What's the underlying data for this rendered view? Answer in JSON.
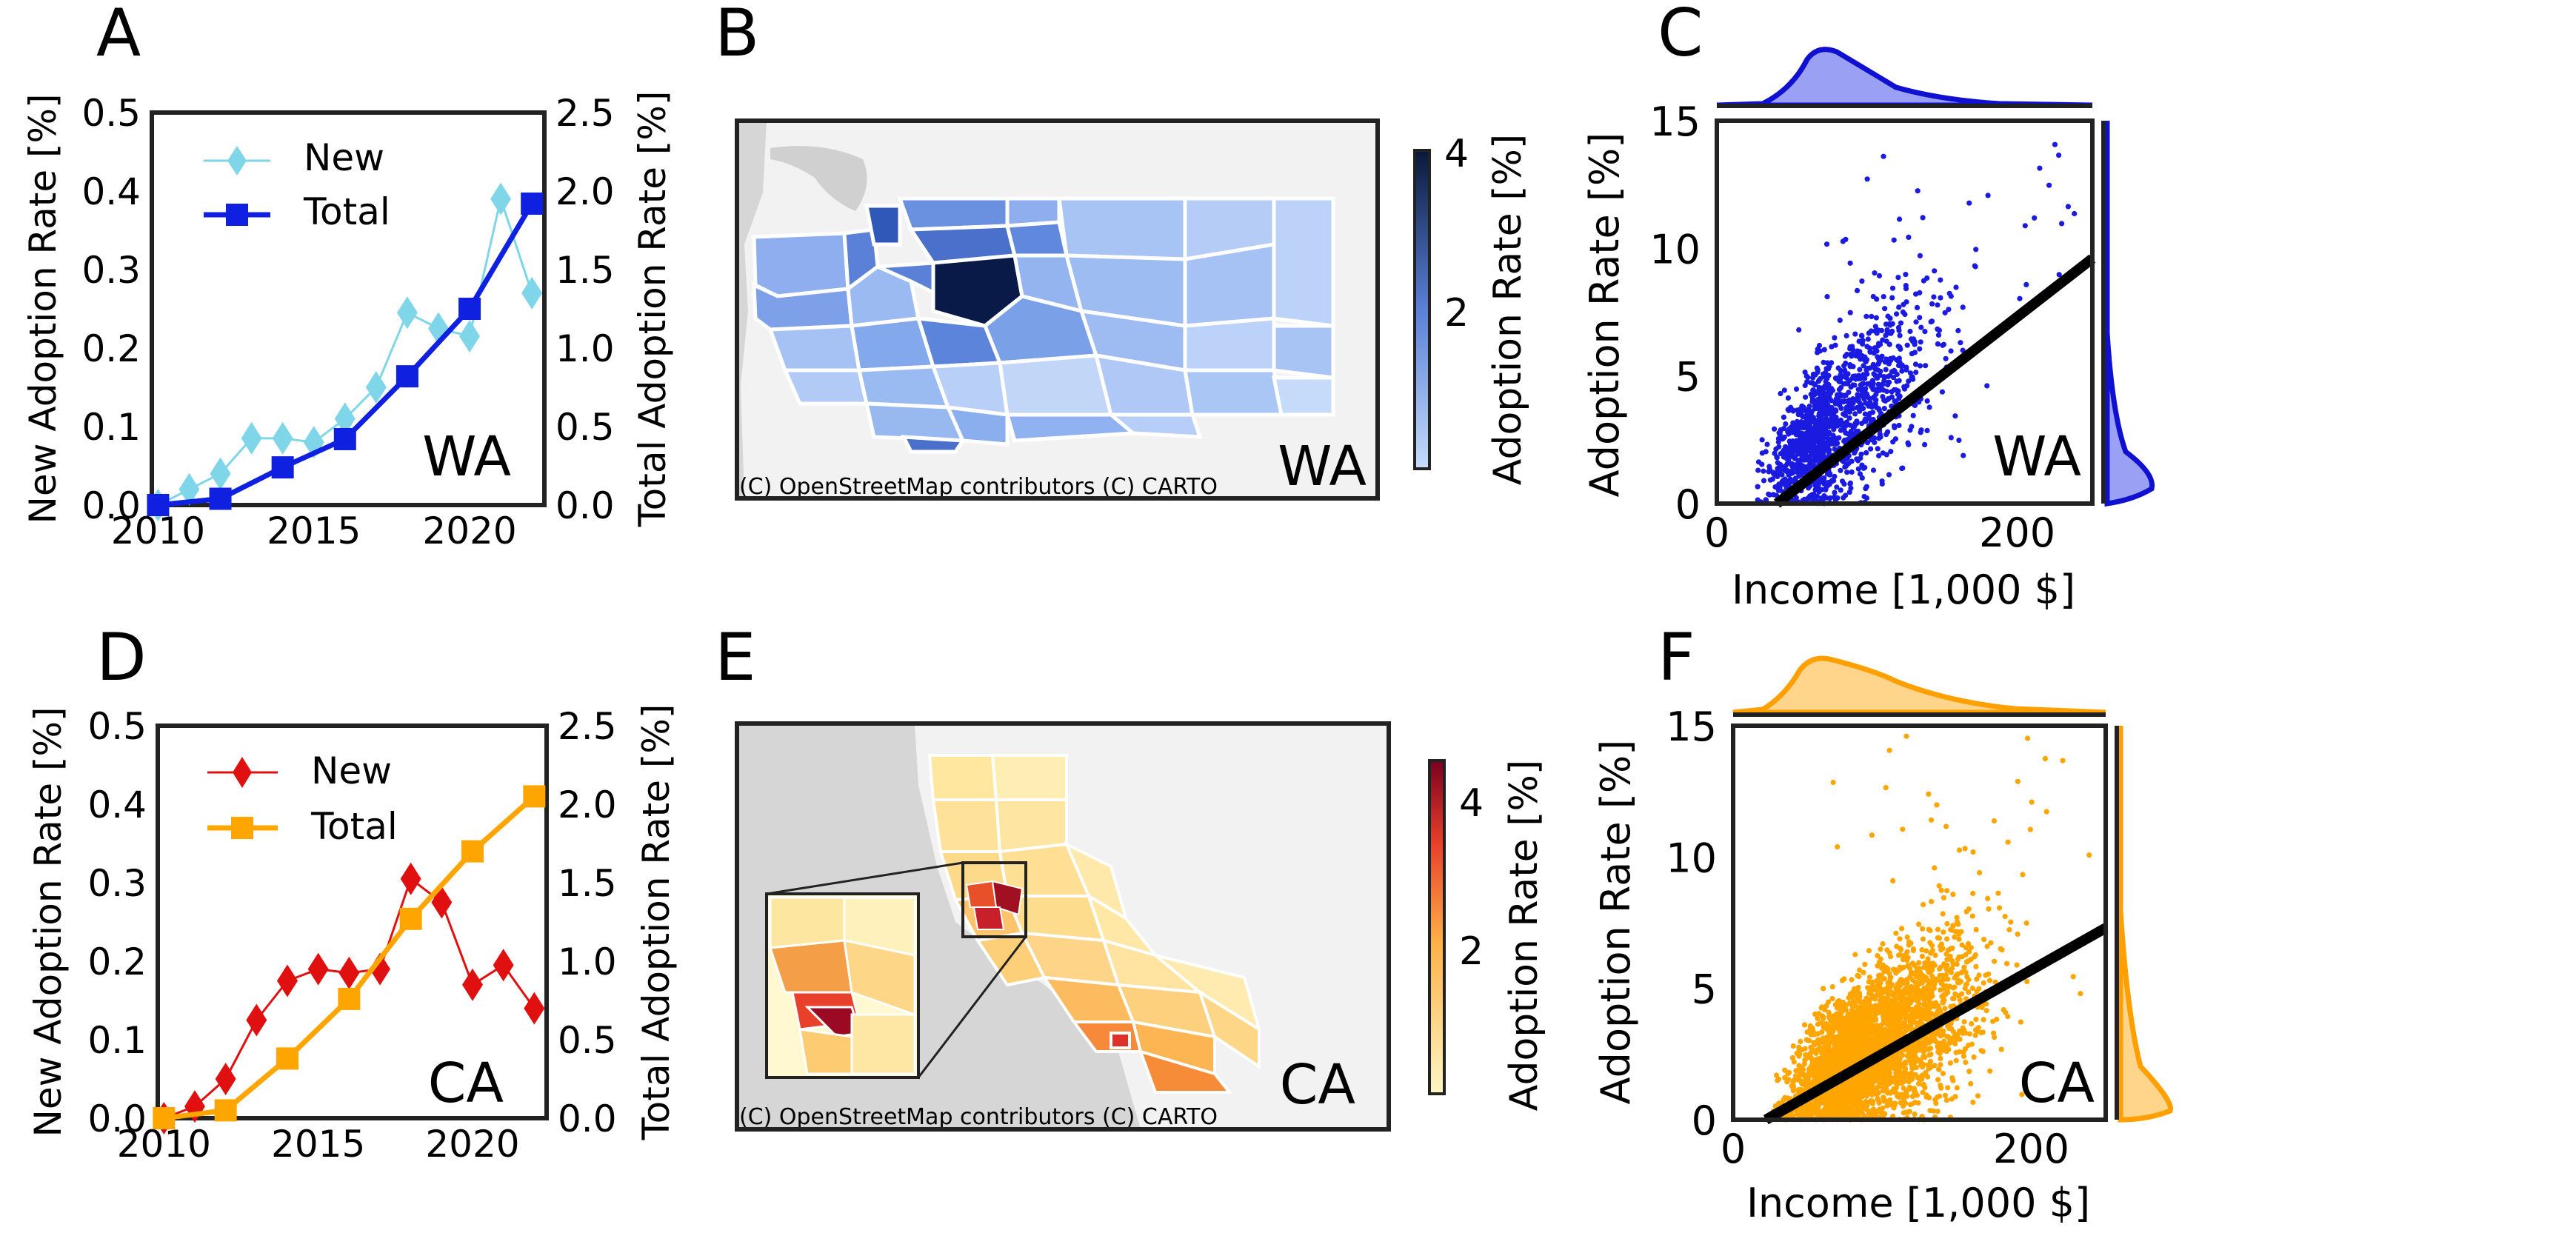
{
  "colors": {
    "wa_new": "#7fd6e8",
    "wa_total": "#1020e0",
    "ca_new": "#e01010",
    "ca_total": "#ffa500",
    "wa_scatter": "#1a1ae0",
    "ca_scatter": "#ffa500",
    "fit": "#000000",
    "map_bg": "#f2f2f2",
    "ocean": "#d6d6d6"
  },
  "panels": {
    "A": {
      "letter": "A",
      "state": "WA",
      "legend_new": "New",
      "legend_total": "Total",
      "ylabel_left": "New Adoption Rate [%]",
      "ylabel_right": "Total Adoption Rate [%]"
    },
    "B": {
      "letter": "B",
      "state": "WA",
      "credit": "(C) OpenStreetMap contributors (C) CARTO",
      "cbar_label": "Adoption Rate [%]",
      "cbar_ticks": [
        "4",
        "2"
      ]
    },
    "C": {
      "letter": "C",
      "state": "WA",
      "xlabel": "Income [1,000 $]",
      "ylabel": "Adoption Rate [%]"
    },
    "D": {
      "letter": "D",
      "state": "CA",
      "legend_new": "New",
      "legend_total": "Total",
      "ylabel_left": "New Adoption Rate [%]",
      "ylabel_right": "Total Adoption Rate [%]"
    },
    "E": {
      "letter": "E",
      "state": "CA",
      "credit": "(C) OpenStreetMap contributors (C) CARTO",
      "cbar_label": "Adoption Rate [%]",
      "cbar_ticks": [
        "4",
        "2"
      ]
    },
    "F": {
      "letter": "F",
      "state": "CA",
      "xlabel": "Income [1,000 $]",
      "ylabel": "Adoption Rate [%]"
    }
  },
  "chart_data": [
    {
      "panel": "A",
      "type": "line",
      "x": [
        2010,
        2011,
        2012,
        2013,
        2014,
        2015,
        2016,
        2017,
        2018,
        2019,
        2020,
        2021,
        2022
      ],
      "x_ticks": [
        "2010",
        "2015",
        "2020"
      ],
      "series": [
        {
          "name": "New",
          "axis": "left",
          "x": [
            2010,
            2011,
            2012,
            2013,
            2014,
            2015,
            2016,
            2017,
            2018,
            2019,
            2020,
            2021,
            2022
          ],
          "values": [
            0.0,
            0.02,
            0.04,
            0.085,
            0.085,
            0.08,
            0.11,
            0.15,
            0.245,
            0.225,
            0.215,
            0.39,
            0.27
          ]
        },
        {
          "name": "Total",
          "axis": "right",
          "x": [
            2010,
            2012,
            2014,
            2016,
            2018,
            2020,
            2022
          ],
          "values": [
            0.0,
            0.04,
            0.24,
            0.42,
            0.82,
            1.25,
            1.92
          ]
        }
      ],
      "ylim_left": [
        0,
        0.5
      ],
      "yticks_left": [
        "0.0",
        "0.1",
        "0.2",
        "0.3",
        "0.4",
        "0.5"
      ],
      "ylim_right": [
        0,
        2.5
      ],
      "yticks_right": [
        "0.0",
        "0.5",
        "1.0",
        "1.5",
        "2.0",
        "2.5"
      ],
      "xlim": [
        2009.8,
        2022.4
      ]
    },
    {
      "panel": "D",
      "type": "line",
      "x": [
        2010,
        2011,
        2012,
        2013,
        2014,
        2015,
        2016,
        2017,
        2018,
        2019,
        2020,
        2021,
        2022
      ],
      "x_ticks": [
        "2010",
        "2015",
        "2020"
      ],
      "series": [
        {
          "name": "New",
          "axis": "left",
          "x": [
            2010,
            2011,
            2012,
            2013,
            2014,
            2015,
            2016,
            2017,
            2018,
            2019,
            2020,
            2021,
            2022
          ],
          "values": [
            0.0,
            0.015,
            0.05,
            0.125,
            0.175,
            0.19,
            0.185,
            0.19,
            0.305,
            0.275,
            0.17,
            0.195,
            0.14
          ]
        },
        {
          "name": "Total",
          "axis": "right",
          "x": [
            2010,
            2012,
            2014,
            2016,
            2018,
            2020,
            2022
          ],
          "values": [
            0.0,
            0.05,
            0.38,
            0.76,
            1.27,
            1.7,
            2.05
          ]
        }
      ],
      "ylim_left": [
        0,
        0.5
      ],
      "yticks_left": [
        "0.0",
        "0.1",
        "0.2",
        "0.3",
        "0.4",
        "0.5"
      ],
      "ylim_right": [
        0,
        2.5
      ],
      "yticks_right": [
        "0.0",
        "0.5",
        "1.0",
        "1.5",
        "2.0",
        "2.5"
      ],
      "xlim": [
        2009.8,
        2022.4
      ]
    },
    {
      "panel": "C",
      "type": "scatter",
      "xlim": [
        0,
        250
      ],
      "ylim": [
        0,
        15
      ],
      "x_ticks": [
        0,
        200
      ],
      "y_ticks": [
        0,
        5,
        10,
        15
      ],
      "fit_line": {
        "x": [
          40,
          250
        ],
        "y": [
          0,
          9.6
        ]
      },
      "n_points": 1400,
      "x_center": 75,
      "x_spread": 35,
      "slope": 0.046,
      "noise": 1.8
    },
    {
      "panel": "F",
      "type": "scatter",
      "xlim": [
        0,
        250
      ],
      "ylim": [
        0,
        15
      ],
      "x_ticks": [
        0,
        200
      ],
      "y_ticks": [
        0,
        5,
        10,
        15
      ],
      "fit_line": {
        "x": [
          22,
          250
        ],
        "y": [
          0,
          7.3
        ]
      },
      "n_points": 3500,
      "x_center": 85,
      "x_spread": 38,
      "slope": 0.032,
      "noise": 1.6
    }
  ]
}
